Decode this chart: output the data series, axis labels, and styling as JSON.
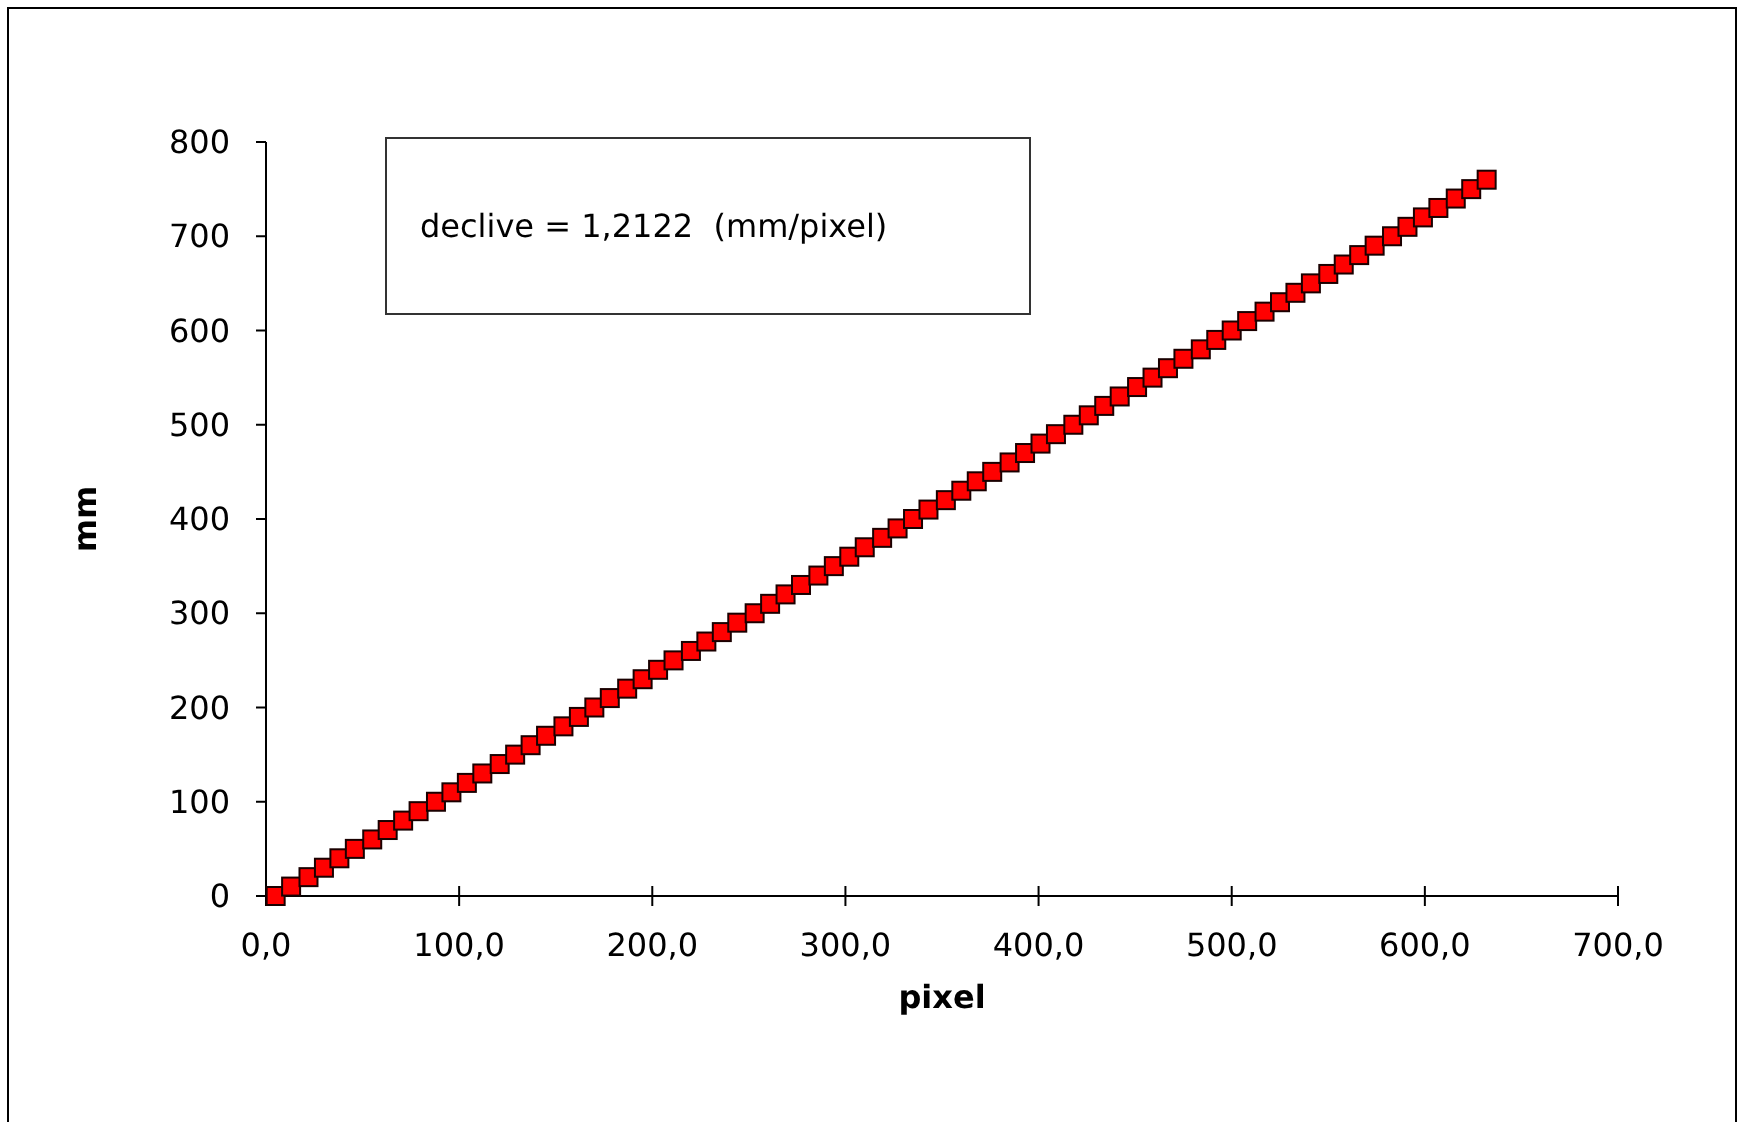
{
  "chart_data": {
    "type": "scatter",
    "xlabel": "pixel",
    "ylabel": "mm",
    "annotations": [
      "declive = 1,2122  (mm/pixel)"
    ],
    "xlim": [
      0,
      700
    ],
    "ylim": [
      0,
      800
    ],
    "xticks": [
      {
        "value": 0,
        "label": "0,0"
      },
      {
        "value": 100,
        "label": "100,0"
      },
      {
        "value": 200,
        "label": "200,0"
      },
      {
        "value": 300,
        "label": "300,0"
      },
      {
        "value": 400,
        "label": "400,0"
      },
      {
        "value": 500,
        "label": "500,0"
      },
      {
        "value": 600,
        "label": "600,0"
      },
      {
        "value": 700,
        "label": "700,0"
      }
    ],
    "yticks": [
      0,
      100,
      200,
      300,
      400,
      500,
      600,
      700,
      800
    ],
    "grid": false,
    "marker": "square",
    "x": [
      5,
      13,
      22,
      30,
      38,
      46,
      55,
      63,
      71,
      79,
      88,
      96,
      104,
      112,
      121,
      129,
      137,
      145,
      154,
      162,
      170,
      178,
      187,
      195,
      203,
      211,
      220,
      228,
      236,
      244,
      253,
      261,
      269,
      277,
      286,
      294,
      302,
      310,
      319,
      327,
      335,
      343,
      352,
      360,
      368,
      376,
      385,
      393,
      401,
      409,
      418,
      426,
      434,
      442,
      451,
      459,
      467,
      475,
      484,
      492,
      500,
      508,
      517,
      525,
      533,
      541,
      550,
      558,
      566,
      574,
      583,
      591,
      599,
      607,
      616,
      624,
      632
    ],
    "series": [
      {
        "color": "#ff0000",
        "values": [
          0,
          10,
          20,
          30,
          40,
          50,
          60,
          70,
          80,
          90,
          100,
          110,
          120,
          130,
          140,
          150,
          160,
          170,
          180,
          190,
          200,
          210,
          220,
          230,
          240,
          250,
          260,
          270,
          280,
          290,
          300,
          310,
          320,
          330,
          340,
          350,
          360,
          370,
          380,
          390,
          400,
          410,
          420,
          430,
          440,
          450,
          460,
          470,
          480,
          490,
          500,
          510,
          520,
          530,
          540,
          550,
          560,
          570,
          580,
          590,
          600,
          610,
          620,
          630,
          640,
          650,
          660,
          670,
          680,
          690,
          700,
          710,
          720,
          730,
          740,
          750,
          760
        ]
      }
    ]
  }
}
